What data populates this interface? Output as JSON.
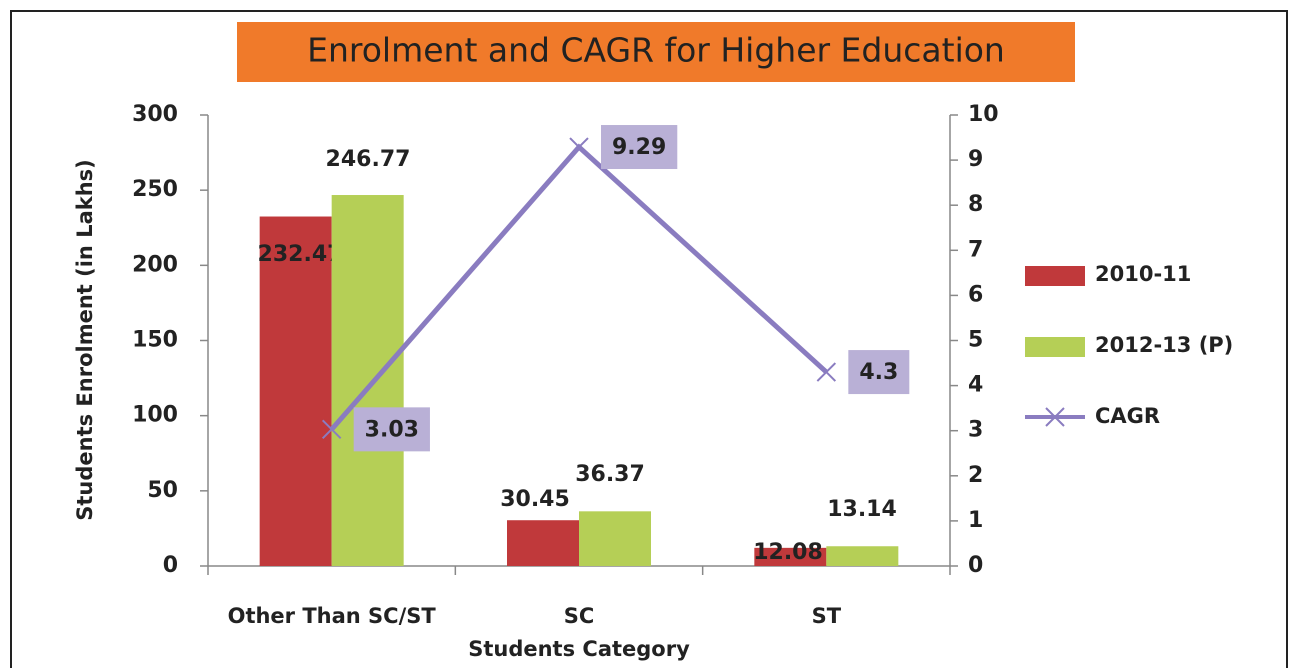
{
  "chart_data": {
    "type": "bar",
    "title": "Enrolment and CAGR for Higher Education",
    "x_label": "Students Category",
    "y_label": "Students Enrolment (in Lakhs)",
    "categories": [
      "Other Than SC/ST",
      "SC",
      "ST"
    ],
    "series": [
      {
        "name": "2010-11",
        "color": "#c0393b",
        "type": "bar",
        "values": [
          232.47,
          30.45,
          12.08
        ]
      },
      {
        "name": "2012-13 (P)",
        "color": "#b5cf56",
        "type": "bar",
        "values": [
          246.77,
          36.37,
          13.14
        ]
      },
      {
        "name": "CAGR",
        "color": "#8a7cc0",
        "type": "line",
        "axis": "y2",
        "marker": "x",
        "values": [
          3.03,
          9.29,
          4.3
        ]
      }
    ],
    "ylim": [
      0,
      300
    ],
    "yticks": [
      0,
      50,
      100,
      150,
      200,
      250,
      300
    ],
    "y2lim": [
      0,
      10
    ],
    "y2ticks": [
      0,
      1,
      2,
      3,
      4,
      5,
      6,
      7,
      8,
      9,
      10
    ],
    "title_background": "#f07a2a",
    "legend": "right"
  }
}
